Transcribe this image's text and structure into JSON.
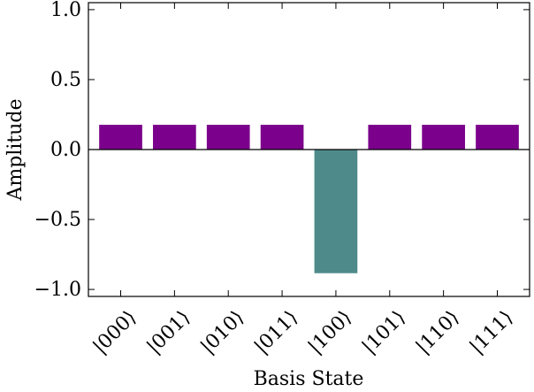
{
  "chart_data": {
    "type": "bar",
    "title": "",
    "xlabel": "Basis State",
    "ylabel": "Amplitude",
    "categories": [
      "|000⟩",
      "|001⟩",
      "|010⟩",
      "|011⟩",
      "|100⟩",
      "|101⟩",
      "|110⟩",
      "|111⟩"
    ],
    "values": [
      0.177,
      0.177,
      0.177,
      0.177,
      -0.884,
      0.177,
      0.177,
      0.177
    ],
    "ylim": [
      -1.05,
      1.05
    ],
    "yticks": [
      -1.0,
      -0.5,
      0.0,
      0.5,
      1.0
    ],
    "ytick_labels": [
      "−1.0",
      "−0.5",
      "0.0",
      "0.5",
      "1.0"
    ],
    "bar_colors": [
      "#7b008b",
      "#7b008b",
      "#7b008b",
      "#7b008b",
      "#4f8a8b",
      "#7b008b",
      "#7b008b",
      "#7b008b"
    ],
    "zero_line": true,
    "grid": false,
    "legend": false
  }
}
